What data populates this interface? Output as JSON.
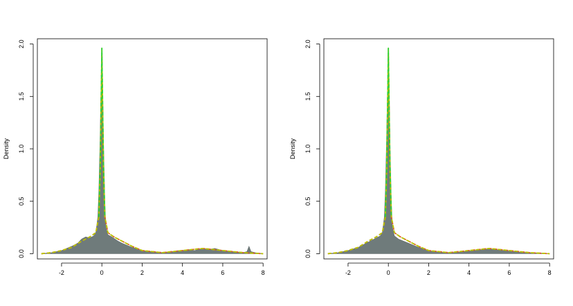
{
  "chart_data": [
    {
      "type": "area",
      "title": "",
      "xlabel": "",
      "ylabel": "Density",
      "xlim": [
        -3.2,
        8.2
      ],
      "ylim": [
        -0.05,
        2.05
      ],
      "xticks": [
        "-2",
        "0",
        "2",
        "4",
        "6",
        "8"
      ],
      "xtick_values": [
        -2,
        0,
        2,
        4,
        6,
        8
      ],
      "yticks": [
        "0.0",
        "0.5",
        "1.0",
        "1.5",
        "2.0"
      ],
      "ytick_values": [
        0.0,
        0.5,
        1.0,
        1.5,
        2.0
      ],
      "grid": false,
      "series": [
        {
          "style": "filled-histogram",
          "color": "#6f7b7b",
          "x": [
            -3.0,
            -2.5,
            -2.0,
            -1.5,
            -1.2,
            -1.0,
            -0.8,
            -0.6,
            -0.4,
            -0.3,
            -0.2,
            -0.15,
            -0.1,
            -0.05,
            0.0,
            0.05,
            0.1,
            0.15,
            0.2,
            0.3,
            0.5,
            0.8,
            1.0,
            1.5,
            2.0,
            2.5,
            3.0,
            3.5,
            3.8,
            4.0,
            4.3,
            4.6,
            5.0,
            5.3,
            5.6,
            6.0,
            6.5,
            7.0,
            7.2,
            7.3,
            7.4,
            7.6,
            8.0
          ],
          "y": [
            0.0,
            0.01,
            0.03,
            0.07,
            0.1,
            0.14,
            0.16,
            0.15,
            0.17,
            0.2,
            0.35,
            0.6,
            1.0,
            1.5,
            1.85,
            1.45,
            0.9,
            0.5,
            0.25,
            0.18,
            0.16,
            0.12,
            0.1,
            0.06,
            0.03,
            0.02,
            0.01,
            0.02,
            0.03,
            0.03,
            0.04,
            0.03,
            0.05,
            0.04,
            0.05,
            0.03,
            0.02,
            0.01,
            0.02,
            0.07,
            0.02,
            0.01,
            0.0
          ]
        },
        {
          "style": "dashed",
          "color": "#e05a2a",
          "x": [
            -3.0,
            -2.5,
            -2.0,
            -1.5,
            -1.0,
            -0.6,
            -0.3,
            -0.15,
            -0.08,
            -0.03,
            0.0,
            0.03,
            0.08,
            0.15,
            0.3,
            0.6,
            1.0,
            1.5,
            2.0,
            2.5,
            3.0,
            3.5,
            4.0,
            4.5,
            5.0,
            5.5,
            6.0,
            6.5,
            7.0,
            7.5,
            8.0
          ],
          "y": [
            0.0,
            0.01,
            0.03,
            0.06,
            0.12,
            0.16,
            0.2,
            0.35,
            0.8,
            1.5,
            1.9,
            1.5,
            0.8,
            0.35,
            0.2,
            0.16,
            0.12,
            0.07,
            0.03,
            0.02,
            0.01,
            0.02,
            0.03,
            0.04,
            0.05,
            0.04,
            0.03,
            0.02,
            0.01,
            0.005,
            0.0
          ]
        },
        {
          "style": "dashed",
          "color": "#b8c400",
          "x": [
            -3.0,
            -2.5,
            -2.0,
            -1.5,
            -1.0,
            -0.6,
            -0.3,
            -0.15,
            -0.08,
            -0.03,
            0.0,
            0.03,
            0.08,
            0.15,
            0.3,
            0.6,
            1.0,
            1.5,
            2.0,
            2.5,
            3.0,
            3.5,
            4.0,
            4.5,
            5.0,
            5.5,
            6.0,
            6.5,
            7.0,
            7.5,
            8.0
          ],
          "y": [
            0.0,
            0.01,
            0.03,
            0.06,
            0.12,
            0.16,
            0.2,
            0.35,
            0.8,
            1.5,
            1.96,
            1.5,
            0.8,
            0.35,
            0.2,
            0.16,
            0.12,
            0.07,
            0.03,
            0.02,
            0.01,
            0.02,
            0.03,
            0.04,
            0.05,
            0.04,
            0.03,
            0.02,
            0.01,
            0.005,
            0.0
          ]
        },
        {
          "style": "dashed",
          "color": "#2fd23a",
          "x": [
            -0.15,
            -0.08,
            -0.03,
            0.0,
            0.03,
            0.08,
            0.15
          ],
          "y": [
            0.35,
            0.85,
            1.55,
            1.96,
            1.55,
            0.85,
            0.35
          ]
        }
      ]
    },
    {
      "type": "area",
      "title": "",
      "xlabel": "",
      "ylabel": "Density",
      "xlim": [
        -3.2,
        8.2
      ],
      "ylim": [
        -0.05,
        2.05
      ],
      "xticks": [
        "-2",
        "0",
        "2",
        "4",
        "6",
        "8"
      ],
      "xtick_values": [
        -2,
        0,
        2,
        4,
        6,
        8
      ],
      "yticks": [
        "0.0",
        "0.5",
        "1.0",
        "1.5",
        "2.0"
      ],
      "ytick_values": [
        0.0,
        0.5,
        1.0,
        1.5,
        2.0
      ],
      "grid": false,
      "series": [
        {
          "style": "filled-histogram",
          "color": "#6f7b7b",
          "x": [
            -3.0,
            -2.5,
            -2.0,
            -1.5,
            -1.0,
            -0.6,
            -0.4,
            -0.3,
            -0.2,
            -0.15,
            -0.1,
            -0.05,
            0.0,
            0.05,
            0.1,
            0.15,
            0.2,
            0.3,
            0.5,
            1.0,
            1.5,
            2.0,
            2.5,
            3.0,
            3.5,
            4.0,
            4.5,
            5.0,
            5.5,
            6.0,
            6.5,
            7.0,
            7.5,
            8.0
          ],
          "y": [
            0.0,
            0.01,
            0.03,
            0.06,
            0.11,
            0.15,
            0.17,
            0.2,
            0.35,
            0.6,
            1.0,
            1.5,
            1.85,
            1.45,
            0.9,
            0.5,
            0.25,
            0.17,
            0.14,
            0.1,
            0.06,
            0.03,
            0.015,
            0.01,
            0.015,
            0.025,
            0.035,
            0.045,
            0.035,
            0.025,
            0.015,
            0.01,
            0.005,
            0.0
          ]
        },
        {
          "style": "dashed",
          "color": "#e05a2a",
          "x": [
            -3.0,
            -2.5,
            -2.0,
            -1.5,
            -1.0,
            -0.6,
            -0.3,
            -0.15,
            -0.08,
            -0.03,
            0.0,
            0.03,
            0.08,
            0.15,
            0.3,
            0.6,
            1.0,
            1.5,
            2.0,
            2.5,
            3.0,
            3.5,
            4.0,
            4.5,
            5.0,
            5.5,
            6.0,
            6.5,
            7.0,
            7.5,
            8.0
          ],
          "y": [
            0.0,
            0.01,
            0.03,
            0.06,
            0.12,
            0.16,
            0.2,
            0.35,
            0.8,
            1.5,
            1.9,
            1.5,
            0.8,
            0.35,
            0.2,
            0.16,
            0.12,
            0.07,
            0.03,
            0.02,
            0.01,
            0.02,
            0.03,
            0.04,
            0.05,
            0.04,
            0.03,
            0.02,
            0.01,
            0.005,
            0.0
          ]
        },
        {
          "style": "dashed",
          "color": "#b8c400",
          "x": [
            -3.0,
            -2.5,
            -2.0,
            -1.5,
            -1.0,
            -0.6,
            -0.3,
            -0.15,
            -0.08,
            -0.03,
            0.0,
            0.03,
            0.08,
            0.15,
            0.3,
            0.6,
            1.0,
            1.5,
            2.0,
            2.5,
            3.0,
            3.5,
            4.0,
            4.5,
            5.0,
            5.5,
            6.0,
            6.5,
            7.0,
            7.5,
            8.0
          ],
          "y": [
            0.0,
            0.01,
            0.03,
            0.06,
            0.12,
            0.16,
            0.2,
            0.35,
            0.8,
            1.5,
            1.96,
            1.5,
            0.8,
            0.35,
            0.2,
            0.16,
            0.12,
            0.07,
            0.03,
            0.02,
            0.01,
            0.02,
            0.03,
            0.04,
            0.05,
            0.04,
            0.03,
            0.02,
            0.01,
            0.005,
            0.0
          ]
        },
        {
          "style": "dashed",
          "color": "#2fd23a",
          "x": [
            -0.15,
            -0.08,
            -0.03,
            0.0,
            0.03,
            0.08,
            0.15
          ],
          "y": [
            0.35,
            0.85,
            1.55,
            1.96,
            1.55,
            0.85,
            0.35
          ]
        }
      ]
    }
  ]
}
